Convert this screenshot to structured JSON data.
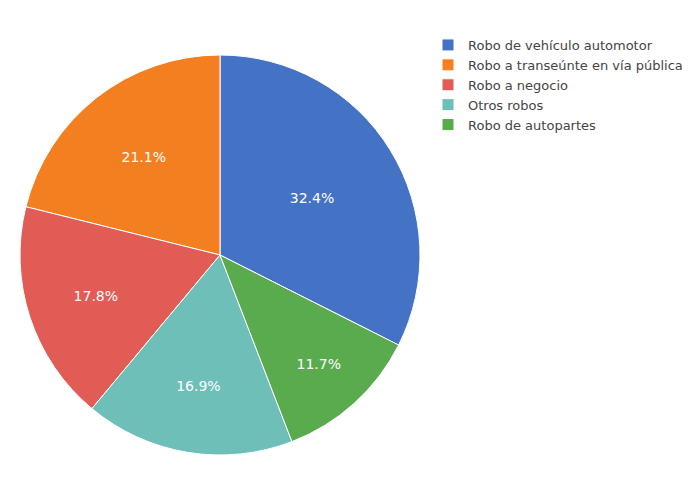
{
  "chart_data": {
    "type": "pie",
    "categories": [
      "Robo de vehículo automotor",
      "Robo a transeúnte en vía pública",
      "Robo a negocio",
      "Otros robos",
      "Robo de autopartes"
    ],
    "values": [
      32.4,
      21.1,
      17.8,
      16.9,
      11.7
    ],
    "value_labels": [
      "32.4%",
      "21.1%",
      "17.8%",
      "16.9%",
      "11.7%"
    ],
    "colors": [
      "#4472c4",
      "#f47f20",
      "#e05c55",
      "#6dbfb8",
      "#5aaa4e"
    ],
    "data_labels": true,
    "legend": "right"
  }
}
